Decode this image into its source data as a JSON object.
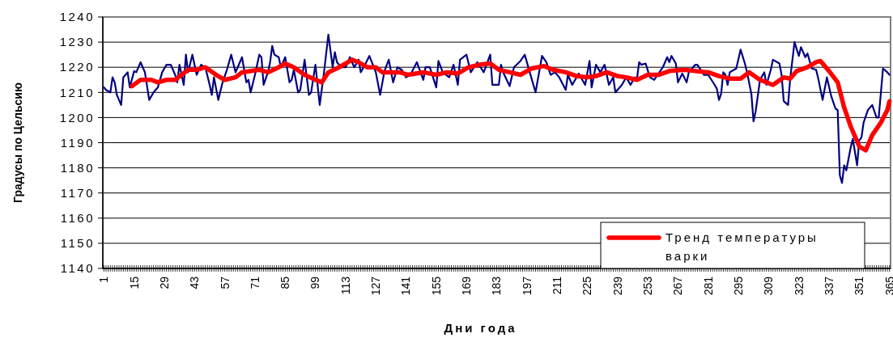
{
  "chart_data": {
    "type": "line",
    "xlabel": "Дни года",
    "ylabel": "Градусы по Цельсию",
    "xlim": [
      0.5,
      365.5
    ],
    "xticks": [
      1,
      15,
      29,
      43,
      57,
      71,
      85,
      99,
      113,
      127,
      141,
      155,
      169,
      183,
      197,
      211,
      225,
      239,
      253,
      267,
      281,
      295,
      309,
      323,
      337,
      351,
      365
    ],
    "ylim": [
      1140,
      1240
    ],
    "yticks": [
      1140,
      1150,
      1160,
      1170,
      1180,
      1190,
      1200,
      1210,
      1220,
      1230,
      1240
    ],
    "grid": "y",
    "legend": "bottom right",
    "marker": "none",
    "line_style": "solid",
    "series": [
      {
        "color": "#000080",
        "x": [
          1,
          2,
          4,
          5,
          6,
          7,
          9,
          10,
          12,
          13,
          15,
          16,
          18,
          20,
          22,
          24,
          26,
          28,
          30,
          32,
          34,
          35,
          36,
          38,
          39,
          40,
          42,
          44,
          46,
          48,
          50,
          51,
          52,
          54,
          56,
          58,
          60,
          62,
          63,
          65,
          67,
          68,
          69,
          71,
          73,
          74,
          75,
          77,
          78,
          79,
          80,
          82,
          83,
          85,
          87,
          88,
          89,
          91,
          92,
          94,
          96,
          97,
          99,
          101,
          103,
          105,
          107,
          108,
          109,
          111,
          113,
          115,
          117,
          119,
          120,
          122,
          124,
          127,
          129,
          131,
          133,
          135,
          137,
          139,
          141,
          143,
          146,
          149,
          150,
          152,
          155,
          156,
          158,
          161,
          163,
          165,
          166,
          169,
          171,
          174,
          177,
          180,
          181,
          184,
          185,
          186,
          189,
          191,
          194,
          196,
          199,
          201,
          204,
          206,
          208,
          210,
          212,
          215,
          216,
          218,
          221,
          224,
          226,
          227,
          229,
          231,
          233,
          235,
          237,
          238,
          241,
          243,
          245,
          247,
          248,
          249,
          250,
          252,
          254,
          256,
          258,
          260,
          262,
          263,
          264,
          266,
          267,
          269,
          271,
          272,
          275,
          276,
          279,
          281,
          284,
          285,
          286,
          287,
          288,
          289,
          290,
          291,
          293,
          294,
          296,
          298,
          299,
          301,
          302,
          303,
          305,
          307,
          308,
          310,
          311,
          314,
          315,
          316,
          318,
          319,
          321,
          323,
          324,
          326,
          327,
          329,
          331,
          332,
          334,
          336,
          338,
          340,
          341,
          342,
          343,
          344,
          345,
          347,
          348,
          350,
          351,
          352,
          353,
          355,
          357,
          359,
          360,
          362,
          364,
          365
        ],
        "values": [
          1212,
          1211,
          1210,
          1216,
          1214,
          1209,
          1205,
          1216,
          1218,
          1212,
          1218.5,
          1218,
          1222,
          1218,
          1207,
          1210,
          1212,
          1218,
          1221,
          1221,
          1217,
          1214,
          1221,
          1213,
          1225,
          1218,
          1225,
          1217,
          1221,
          1220,
          1213,
          1209,
          1216,
          1207,
          1214,
          1219,
          1225,
          1218,
          1220,
          1224,
          1214,
          1215,
          1210,
          1217,
          1225,
          1224,
          1213,
          1218,
          1222,
          1228.5,
          1225,
          1224,
          1220,
          1224,
          1214,
          1215,
          1219,
          1210,
          1211,
          1223,
          1209,
          1210,
          1221,
          1205,
          1218,
          1233,
          1220,
          1226,
          1222,
          1220,
          1220,
          1224,
          1220,
          1223,
          1218,
          1221,
          1224.5,
          1218,
          1209,
          1218.5,
          1223,
          1214,
          1220,
          1219,
          1216,
          1217,
          1222,
          1215,
          1220,
          1220,
          1212,
          1222.5,
          1218,
          1216,
          1221,
          1213,
          1223,
          1225,
          1218,
          1222,
          1218,
          1225,
          1213,
          1213,
          1221,
          1218,
          1212.5,
          1220,
          1222.5,
          1225,
          1216,
          1210,
          1224.5,
          1222,
          1217,
          1218,
          1216,
          1211,
          1217,
          1213,
          1217.5,
          1213,
          1222.5,
          1212,
          1221,
          1218,
          1221,
          1213,
          1216,
          1210,
          1213,
          1216,
          1213,
          1216,
          1215.5,
          1222,
          1221,
          1221.5,
          1216,
          1215,
          1217.5,
          1220,
          1224,
          1222,
          1224.5,
          1221.5,
          1214,
          1217.5,
          1214,
          1218,
          1221,
          1221,
          1217,
          1217,
          1213,
          1211.5,
          1207,
          1209.5,
          1218,
          1217,
          1213,
          1218,
          1219,
          1219.5,
          1227,
          1221.5,
          1218,
          1209.5,
          1198.5,
          1202.5,
          1215,
          1218,
          1213,
          1219,
          1223,
          1221.5,
          1217,
          1206.5,
          1205,
          1215.5,
          1230,
          1224.5,
          1228,
          1224,
          1225.5,
          1219.5,
          1219,
          1215.5,
          1207,
          1216,
          1208.5,
          1203.5,
          1203,
          1177,
          1174,
          1181,
          1179,
          1188,
          1191.5,
          1181,
          1191,
          1192,
          1198,
          1203,
          1205,
          1200,
          1200,
          1219.5,
          1218,
          1217
        ]
      },
      {
        "name": "Тренд температуры варки",
        "color": "#ff0000",
        "x": [
          14,
          18,
          23,
          26,
          30,
          34,
          40,
          44,
          48,
          53,
          57,
          62,
          65,
          73,
          77,
          82,
          85,
          89,
          94,
          99,
          102,
          105,
          110,
          116,
          119,
          123,
          127,
          130,
          138,
          142,
          149,
          155,
          160,
          165,
          170,
          175,
          180,
          184,
          189,
          194,
          199,
          205,
          209,
          215,
          220,
          225,
          229,
          234,
          239,
          243,
          248,
          253,
          258,
          263,
          270,
          275,
          281,
          286,
          291,
          296,
          300,
          305,
          311,
          316,
          319,
          322,
          327,
          331,
          333,
          337,
          341,
          344,
          347,
          351,
          354,
          357,
          361,
          364,
          365
        ],
        "values": [
          1212.5,
          1215,
          1215,
          1214,
          1215,
          1215,
          1219,
          1219,
          1220,
          1217,
          1215,
          1216,
          1218,
          1219,
          1218,
          1220,
          1221.5,
          1220,
          1217,
          1215,
          1214,
          1218,
          1220,
          1223,
          1222,
          1220,
          1220,
          1218,
          1218,
          1217,
          1218,
          1217,
          1218,
          1217.5,
          1220,
          1221,
          1221.5,
          1219,
          1218,
          1217,
          1219.5,
          1220.5,
          1219,
          1218,
          1216.5,
          1216,
          1216.5,
          1218,
          1216.5,
          1216,
          1215,
          1217,
          1217,
          1218.5,
          1219,
          1218.5,
          1218,
          1216.5,
          1215.5,
          1215.5,
          1218,
          1215,
          1213,
          1216,
          1215.5,
          1218.5,
          1220,
          1222,
          1222.5,
          1218.5,
          1214,
          1204,
          1196.5,
          1188.5,
          1187,
          1193,
          1198,
          1203,
          1206.5
        ]
      }
    ]
  }
}
